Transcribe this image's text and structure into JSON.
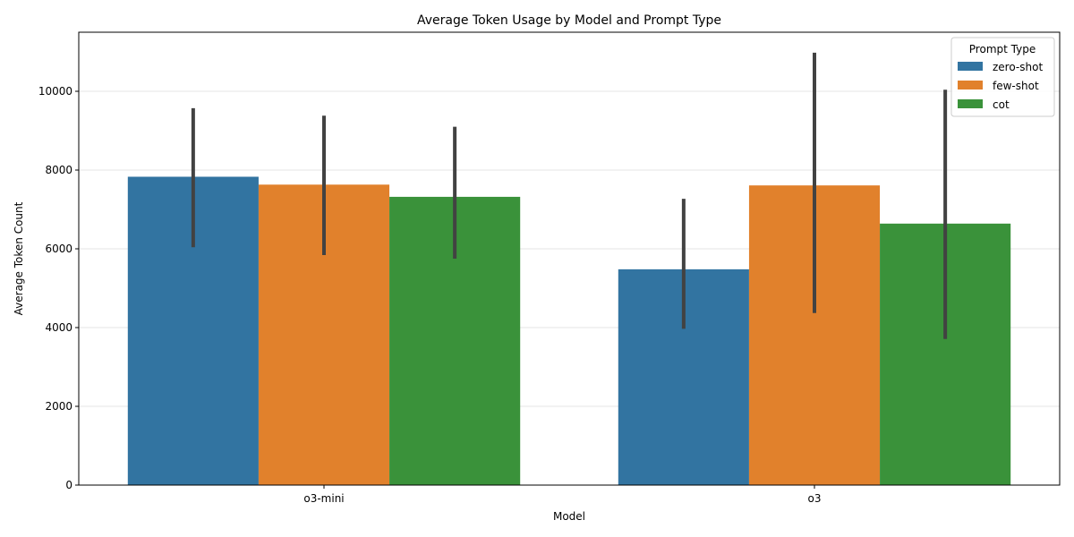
{
  "chart_data": {
    "type": "bar",
    "title": "Average Token Usage by Model and Prompt Type",
    "xlabel": "Model",
    "ylabel": "Average Token Count",
    "categories": [
      "o3-mini",
      "o3"
    ],
    "ylim": [
      0,
      11500
    ],
    "yticks": [
      0,
      2000,
      4000,
      6000,
      8000,
      10000
    ],
    "grid": "horizontal",
    "legend": {
      "title": "Prompt Type",
      "placement": "top-right"
    },
    "series": [
      {
        "name": "zero-shot",
        "color": "#3274a1",
        "values": [
          7830,
          5480
        ],
        "err_low": [
          6040,
          3970
        ],
        "err_high": [
          9570,
          7270
        ]
      },
      {
        "name": "few-shot",
        "color": "#e1812c",
        "values": [
          7630,
          7610
        ],
        "err_low": [
          5840,
          4370
        ],
        "err_high": [
          9380,
          10980
        ]
      },
      {
        "name": "cot",
        "color": "#3a923a",
        "values": [
          7320,
          6640
        ],
        "err_low": [
          5750,
          3710
        ],
        "err_high": [
          9100,
          10040
        ]
      }
    ]
  }
}
